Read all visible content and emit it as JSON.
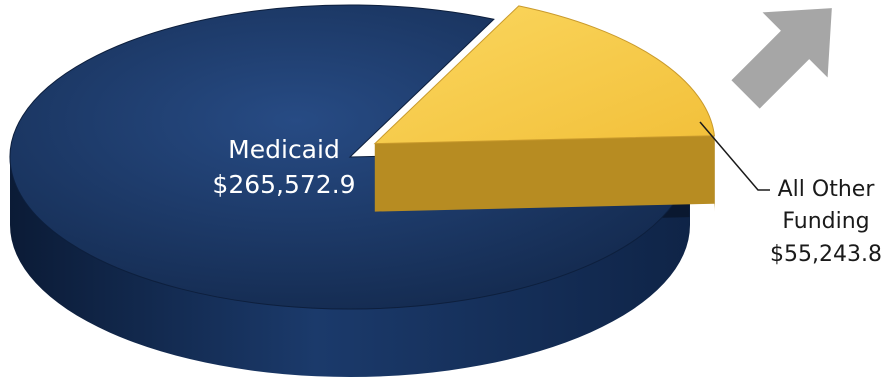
{
  "chart_data": {
    "type": "pie",
    "style": "3d-exploded",
    "slices": [
      {
        "label": "Medicaid",
        "value": 265572.9,
        "value_text": "$265,572.9",
        "color": "#1b3a6b",
        "exploded": false
      },
      {
        "label": "All Other Funding",
        "label_lines": [
          "All Other",
          "Funding"
        ],
        "value": 55243.8,
        "value_text": "$55,243.8",
        "color": "#f5c84a",
        "exploded": true
      }
    ],
    "label_text_colors": {
      "Medicaid": "#ffffff",
      "All Other Funding": "#1a1a1a"
    },
    "decorations": {
      "arrow": "gray-up-right-arrow",
      "arrow_color": "#a6a6a6"
    }
  }
}
